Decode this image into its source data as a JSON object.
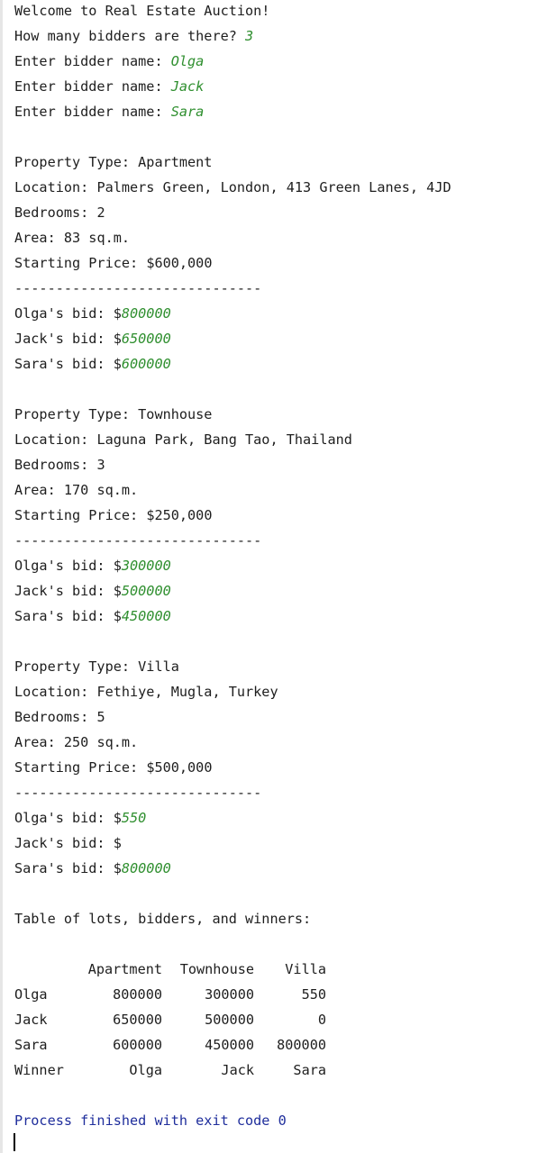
{
  "intro": {
    "welcome": "Welcome to Real Estate Auction!",
    "bidders_prompt": "How many bidders are there? ",
    "bidders_count": "3",
    "name_prompt": "Enter bidder name: ",
    "names": [
      "Olga",
      "Jack",
      "Sara"
    ]
  },
  "separator": "------------------------------",
  "labels": {
    "type": "Property Type: ",
    "location": "Location: ",
    "bedrooms": "Bedrooms: ",
    "area": "Area: ",
    "price": "Starting Price: "
  },
  "lots": [
    {
      "type": "Apartment",
      "location": "Palmers Green, London, 413 Green Lanes, 4JD",
      "bedrooms": "2",
      "area": "83 sq.m.",
      "price": "$600,000",
      "bids": [
        {
          "label": "Olga's bid: $",
          "value": "800000"
        },
        {
          "label": "Jack's bid: $",
          "value": "650000"
        },
        {
          "label": "Sara's bid: $",
          "value": "600000"
        }
      ]
    },
    {
      "type": "Townhouse",
      "location": "Laguna Park, Bang Tao, Thailand",
      "bedrooms": "3",
      "area": "170 sq.m.",
      "price": "$250,000",
      "bids": [
        {
          "label": "Olga's bid: $",
          "value": "300000"
        },
        {
          "label": "Jack's bid: $",
          "value": "500000"
        },
        {
          "label": "Sara's bid: $",
          "value": "450000"
        }
      ]
    },
    {
      "type": "Villa",
      "location": "Fethiye, Mugla, Turkey",
      "bedrooms": "5",
      "area": "250 sq.m.",
      "price": "$500,000",
      "bids": [
        {
          "label": "Olga's bid: $",
          "value": "550"
        },
        {
          "label": "Jack's bid: $",
          "value": ""
        },
        {
          "label": "Sara's bid: $",
          "value": "800000"
        }
      ]
    }
  ],
  "table": {
    "title": "Table of lots, bidders, and winners:",
    "headers": [
      "",
      "Apartment",
      "Townhouse",
      "Villa"
    ],
    "rows": [
      [
        "Olga",
        "800000",
        "300000",
        "550"
      ],
      [
        "Jack",
        "650000",
        "500000",
        "0"
      ],
      [
        "Sara",
        "600000",
        "450000",
        "800000"
      ],
      [
        "Winner",
        "Olga",
        "Jack",
        "Sara"
      ]
    ]
  },
  "footer": {
    "process": "Process finished with exit code 0"
  },
  "colors": {
    "input_text": "#2f8f2f",
    "process_text": "#1f2e9c",
    "normal_text": "#1e1e1e"
  }
}
